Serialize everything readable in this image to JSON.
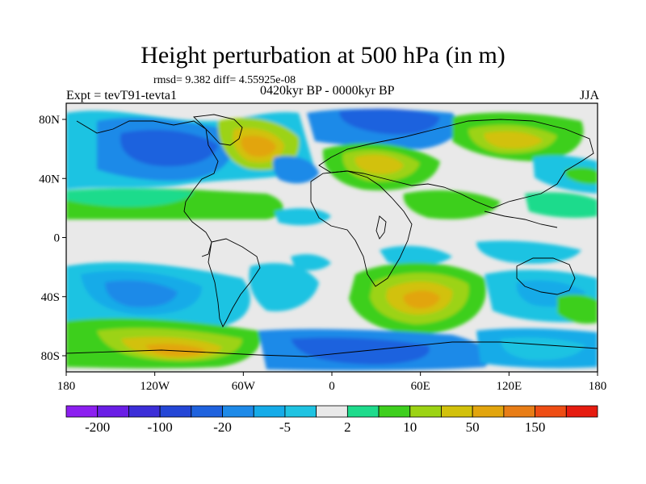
{
  "title": "Height perturbation at 500 hPa (in m)",
  "stats": "rmsd= 9.382 diff= 4.55925e-08",
  "experiment": "Expt = tevT91-tevta1",
  "period": "0420kyr BP - 0000kyr BP",
  "season": "JJA",
  "lat_ticks": [
    "80N",
    "40N",
    "0",
    "40S",
    "80S"
  ],
  "lon_ticks": [
    "180",
    "120W",
    "60W",
    "0",
    "60E",
    "120E",
    "180"
  ],
  "colorbar": {
    "colors": [
      "#8c1ff0",
      "#6a1ee6",
      "#3c2ed8",
      "#2446d6",
      "#1f62de",
      "#1e8ae8",
      "#15abe8",
      "#1fc3e2",
      "#e9e9e9",
      "#1edb8c",
      "#3ecf1e",
      "#9cd314",
      "#d2c10b",
      "#e2a50e",
      "#e87d16",
      "#ee4d14",
      "#e61c10"
    ],
    "labels": [
      "-200",
      "-100",
      "-20",
      "-5",
      "2",
      "10",
      "50",
      "150"
    ]
  }
}
